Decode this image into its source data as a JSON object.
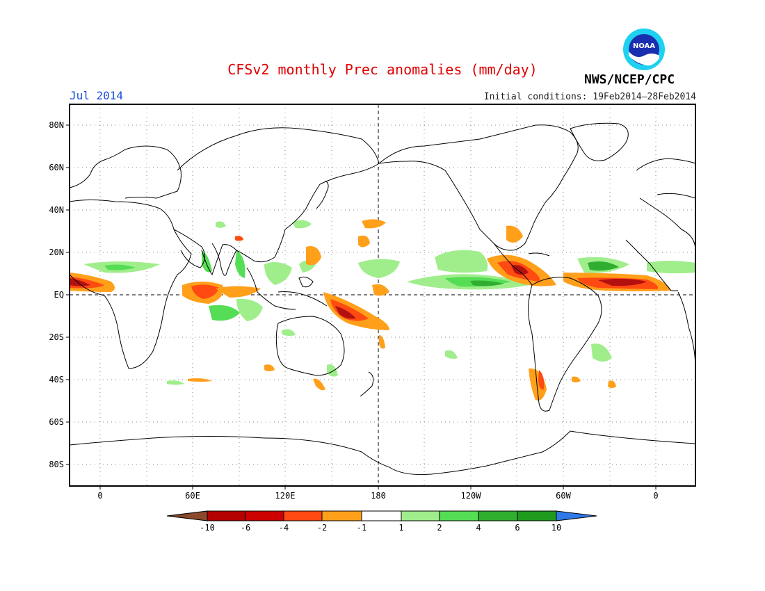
{
  "header": {
    "title": "CFSv2 monthly Prec anomalies (mm/day)",
    "month": "Jul 2014",
    "agency": "NWS/NCEP/CPC",
    "initial_conditions": "Initial conditions: 19Feb2014–28Feb2014",
    "logo_text": "NOAA"
  },
  "axes": {
    "latitude_labels": [
      "80N",
      "60N",
      "40N",
      "20N",
      "EQ",
      "20S",
      "40S",
      "60S",
      "80S"
    ],
    "longitude_labels": [
      "0",
      "60E",
      "120E",
      "180",
      "120W",
      "60W",
      "0"
    ]
  },
  "colorbar": {
    "labels": [
      "-10",
      "-6",
      "-4",
      "-2",
      "-1",
      "1",
      "2",
      "4",
      "6",
      "10"
    ],
    "colors": [
      "#8b4a2b",
      "#b30000",
      "#cc0000",
      "#ff4a12",
      "#ff9f1a",
      "#ffffff",
      "#9fee8b",
      "#55dd55",
      "#2fae2f",
      "#1f9a1f",
      "#2f7ae8"
    ]
  },
  "colors": {
    "title": "#e00000",
    "month": "#1a4fd6",
    "dry_strong": "#b31010",
    "dry_mid": "#ff4a12",
    "dry_weak": "#ff9f1a",
    "wet_weak": "#9fee8b",
    "wet_mid": "#55dd55",
    "wet_strong": "#2fae2f"
  }
}
